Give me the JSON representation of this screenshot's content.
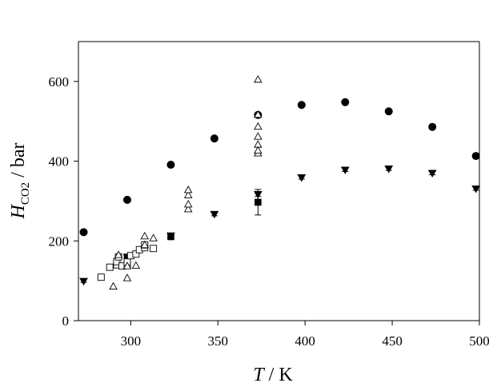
{
  "chart_data": {
    "type": "scatter",
    "xlabel": {
      "symbol": "T",
      "unit": " / K"
    },
    "ylabel": {
      "symbol": "H",
      "subscript": "CO2",
      "unit": " / bar"
    },
    "xlim": [
      270,
      500
    ],
    "ylim": [
      0,
      700
    ],
    "xticks": [
      "300",
      "350",
      "400",
      "450",
      "500"
    ],
    "yticks": [
      "0",
      "200",
      "400",
      "600"
    ],
    "grid": false,
    "legend": "none",
    "series": [
      {
        "marker": "circle-filled",
        "x": [
          273,
          298,
          323,
          348,
          373,
          398,
          423,
          448,
          473,
          498
        ],
        "y": [
          222,
          303,
          391,
          457,
          516,
          541,
          548,
          525,
          486,
          413
        ],
        "yerr": [
          4,
          5,
          5,
          4,
          5,
          4,
          4,
          4,
          5,
          5
        ]
      },
      {
        "marker": "triangle-down-filled",
        "x": [
          273,
          298,
          323,
          348,
          373,
          398,
          423,
          448,
          473,
          498
        ],
        "y": [
          99,
          160,
          213,
          267,
          317,
          359,
          378,
          381,
          370,
          331
        ],
        "yerr": [
          3,
          4,
          5,
          4,
          5,
          4,
          4,
          4,
          4,
          4
        ]
      },
      {
        "marker": "square-filled",
        "x": [
          298,
          323,
          373
        ],
        "y": [
          157,
          211,
          297
        ],
        "yerr": [
          4,
          8,
          32
        ]
      },
      {
        "marker": "square-open",
        "x": [
          283,
          288,
          292,
          292,
          293,
          295,
          298,
          298,
          300,
          303,
          305,
          308,
          308,
          313
        ],
        "y": [
          109,
          134,
          140,
          148,
          160,
          137,
          140,
          147,
          163,
          167,
          178,
          183,
          190,
          181
        ]
      },
      {
        "marker": "triangle-up-open",
        "x": [
          290,
          293,
          298,
          298,
          303,
          308,
          308,
          313,
          333,
          333,
          333,
          333,
          373,
          373,
          373,
          373,
          373,
          373,
          373
        ],
        "y": [
          86,
          165,
          107,
          137,
          138,
          190,
          212,
          207,
          280,
          292,
          315,
          328,
          420,
          427,
          442,
          462,
          487,
          517,
          605
        ]
      }
    ]
  }
}
